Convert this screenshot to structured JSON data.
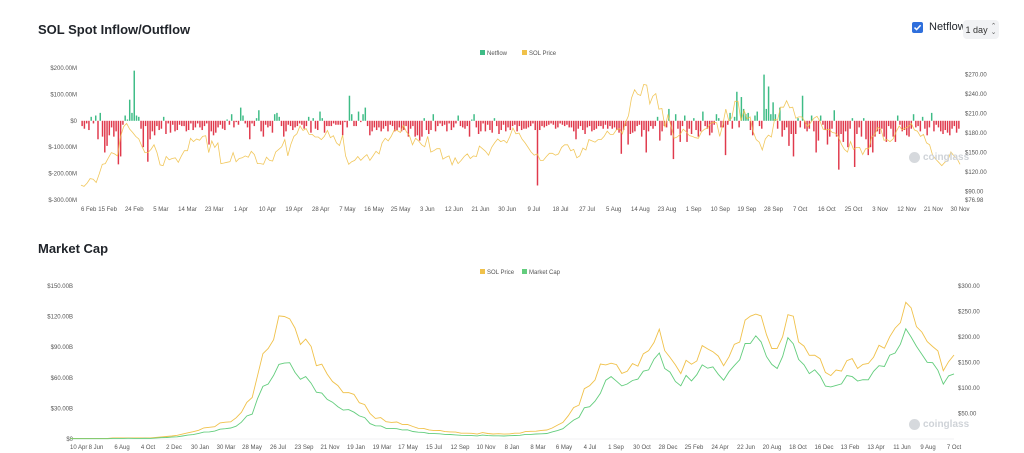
{
  "header": {
    "title": "SOL Spot Inflow/Outflow",
    "netflow_toggle_label": "Netflow",
    "interval_value": "1 day"
  },
  "colors": {
    "inflow": "#3ebc86",
    "outflow": "#e0394c",
    "price": "#f0c14a",
    "marketcap": "#63cd7d",
    "accent": "#2f6fdc"
  },
  "watermark": "coinglass",
  "chart_data": [
    {
      "type": "bar",
      "title": "SOL Spot Inflow/Outflow",
      "legend": [
        "Netflow",
        "SOL Price"
      ],
      "legend_position": "top-center",
      "y_left_ticks": [
        "$200.00M",
        "$100.00M",
        "$0",
        "$-100.00M",
        "$-200.00M",
        "$-300.00M"
      ],
      "y_left_range_millions": [
        -300,
        200
      ],
      "y_right_ticks": [
        "$270.00",
        "$240.00",
        "$210.00",
        "$180.00",
        "$150.00",
        "$120.00",
        "$90.00",
        "$76.98"
      ],
      "y_right_range_usd": [
        76.98,
        285
      ],
      "x_ticks": [
        "6 Feb",
        "15 Feb",
        "24 Feb",
        "5 Mar",
        "14 Mar",
        "23 Mar",
        "1 Apr",
        "10 Apr",
        "19 Apr",
        "28 Apr",
        "7 May",
        "16 May",
        "25 May",
        "3 Jun",
        "12 Jun",
        "21 Jun",
        "30 Jun",
        "9 Jul",
        "18 Jul",
        "27 Jul",
        "5 Aug",
        "14 Aug",
        "23 Aug",
        "1 Sep",
        "10 Sep",
        "19 Sep",
        "28 Sep",
        "7 Oct",
        "16 Oct",
        "25 Oct",
        "3 Nov",
        "12 Nov",
        "21 Nov",
        "30 Nov"
      ],
      "netflow_millions": [
        -20,
        -30,
        -10,
        -35,
        15,
        -10,
        20,
        -70,
        30,
        -60,
        -120,
        -95,
        -55,
        -25,
        -60,
        -40,
        -165,
        -135,
        -15,
        20,
        5,
        80,
        30,
        190,
        20,
        15,
        -30,
        -100,
        -20,
        -155,
        -70,
        -40,
        -55,
        -20,
        -35,
        -30,
        15,
        -50,
        -10,
        -45,
        -15,
        -40,
        -35,
        -15,
        -20,
        -20,
        -40,
        -35,
        -10,
        -35,
        -25,
        -10,
        -25,
        -35,
        -20,
        -10,
        -90,
        -40,
        -55,
        -45,
        -25,
        -15,
        -30,
        -35,
        5,
        -15,
        25,
        -25,
        -5,
        -15,
        50,
        20,
        -10,
        -25,
        -70,
        -10,
        -20,
        10,
        40,
        -40,
        -60,
        -15,
        -25,
        -20,
        -45,
        25,
        30,
        15,
        -20,
        -60,
        -40,
        -15,
        -20,
        -35,
        -25,
        -20,
        -10,
        -15,
        -30,
        -20,
        15,
        -45,
        10,
        -30,
        -35,
        35,
        10,
        -45,
        -20,
        -20,
        -20,
        -10,
        -15,
        -15,
        -15,
        -55,
        -5,
        -25,
        95,
        25,
        -20,
        -20,
        35,
        -5,
        25,
        50,
        -20,
        -55,
        -40,
        -25,
        -35,
        -25,
        -40,
        -30,
        -20,
        -40,
        -15,
        -20,
        -40,
        -35,
        -25,
        -40,
        -35,
        -20,
        -60,
        -30,
        -20,
        -60,
        -55,
        -75,
        -60,
        10,
        -35,
        -50,
        -35,
        25,
        -40,
        -20,
        -10,
        -20,
        -15,
        -40,
        -10,
        -35,
        -25,
        -10,
        20,
        -20,
        -25,
        -30,
        -20,
        -60,
        5,
        25,
        -25,
        -50,
        -40,
        -10,
        -40,
        -15,
        -35,
        -45,
        10,
        -20,
        -50,
        -35,
        -15,
        -40,
        -25,
        -35,
        -20,
        -15,
        -40,
        -20,
        -35,
        -30,
        -30,
        -25,
        -20,
        -10,
        -35,
        -245,
        -35,
        -20,
        -25,
        -20,
        -15,
        -10,
        -15,
        -30,
        -25,
        -10,
        -15,
        -20,
        -15,
        -25,
        -25,
        -40,
        -70,
        -30,
        -20,
        -35,
        -50,
        -25,
        -20,
        -40,
        -35,
        -30,
        -20,
        -20,
        -30,
        -15,
        -30,
        -20,
        -30,
        -25,
        -35,
        -45,
        -125,
        -35,
        -20,
        -90,
        -50,
        -45,
        -40,
        -20,
        -15,
        -60,
        -35,
        -120,
        -40,
        -20,
        -30,
        -20,
        15,
        -75,
        -40,
        -20,
        -25,
        45,
        -55,
        -145,
        25,
        -30,
        -80,
        -20,
        20,
        -80,
        -30,
        -50,
        10,
        -35,
        -60,
        -40,
        35,
        -20,
        -30,
        -55,
        -45,
        -15,
        25,
        10,
        -25,
        -25,
        -130,
        -15,
        30,
        -30,
        15,
        110,
        -25,
        90,
        45,
        25,
        30,
        -35,
        -55,
        20,
        35,
        -20,
        -30,
        175,
        45,
        130,
        25,
        70,
        25,
        -30,
        50,
        -60,
        -35,
        -25,
        -95,
        -50,
        -135,
        -50,
        10,
        -25,
        95,
        -30,
        -40,
        -30,
        20,
        -40,
        -120,
        -75,
        20,
        -15,
        -35,
        -90,
        -60,
        -30,
        40,
        -60,
        -185,
        -50,
        -80,
        -40,
        -100,
        -30,
        10,
        -175,
        -50,
        -25,
        -60,
        10,
        -70,
        -130,
        -100,
        -120,
        -60,
        -40,
        -50,
        -30,
        -60,
        -80,
        -20,
        -30,
        -60,
        -80,
        20,
        -15,
        -40,
        -35,
        -55,
        -60,
        -30,
        25,
        -25,
        -20,
        -40,
        15,
        -30,
        -55,
        -25,
        30,
        -40,
        -15,
        -25,
        -40,
        -50,
        -35,
        -45,
        -55,
        -30,
        -20,
        -45,
        -30
      ],
      "sol_price_usd": [
        100,
        98,
        103,
        110,
        109,
        104,
        117,
        132,
        133,
        142,
        150,
        148,
        145,
        174,
        190,
        195,
        186,
        181,
        175,
        171,
        160,
        150,
        150,
        155,
        162,
        150,
        131,
        130,
        144,
        139,
        141,
        142,
        135,
        145,
        153,
        153,
        172,
        167,
        171,
        169,
        175,
        176,
        150,
        168,
        158,
        165,
        133,
        134,
        135,
        136,
        150,
        136,
        141,
        142,
        145,
        143,
        152,
        147,
        133,
        133,
        132,
        143,
        138,
        137,
        151,
        155,
        159,
        170,
        145,
        163,
        175,
        179,
        191,
        184,
        187,
        178,
        178,
        174,
        174,
        170,
        175,
        184,
        173,
        176,
        165,
        161,
        177,
        145,
        132,
        136,
        138,
        144,
        138,
        143,
        147,
        138,
        145,
        152,
        148,
        165,
        172,
        168,
        175,
        185,
        184,
        181,
        192,
        182,
        176,
        162,
        172,
        168,
        162,
        159,
        175,
        151,
        153,
        156,
        156,
        140,
        143,
        145,
        131,
        142,
        133,
        138,
        144,
        148,
        141,
        145,
        144,
        160,
        156,
        152,
        146,
        158,
        165,
        171,
        167,
        169,
        165,
        175,
        188,
        179,
        180,
        171,
        165,
        158,
        151,
        146,
        148,
        138,
        138,
        144,
        149,
        149,
        146,
        148,
        158,
        162,
        162,
        153,
        155,
        142,
        145,
        157,
        154,
        170,
        168,
        166,
        170,
        170,
        175,
        183,
        178,
        178,
        185,
        187,
        179,
        196,
        207,
        234,
        247,
        240,
        238,
        255,
        254,
        225,
        237,
        241,
        217,
        218,
        189,
        209,
        190,
        172,
        174,
        178,
        186,
        182,
        176,
        175,
        173,
        172,
        182,
        186,
        188,
        195,
        197,
        196,
        175,
        193,
        217,
        199,
        204,
        229,
        229,
        199,
        215,
        202,
        205,
        182,
        170,
        166,
        154,
        171,
        177,
        174,
        201,
        200,
        220,
        220,
        230,
        219,
        220,
        203,
        205,
        205,
        198,
        190,
        197,
        203,
        206,
        198,
        186,
        185,
        186,
        181,
        180,
        175,
        163,
        155,
        151,
        167,
        155,
        158,
        158,
        147,
        156,
        156,
        174,
        178,
        189,
        186,
        169,
        170,
        167,
        171,
        182,
        191,
        185,
        188,
        190,
        195,
        185,
        183,
        175,
        178,
        165,
        162,
        146,
        140,
        135,
        130,
        135,
        138,
        151,
        145,
        141,
        132
      ]
    },
    {
      "type": "line",
      "title": "Market Cap",
      "legend": [
        "SOL Price",
        "Market Cap"
      ],
      "legend_position": "top-center",
      "y_left_ticks": [
        "$150.00B",
        "$120.00B",
        "$90.00B",
        "$60.00B",
        "$30.00B",
        "$0"
      ],
      "y_left_range_billions": [
        0,
        150
      ],
      "y_right_ticks": [
        "$300.00",
        "$250.00",
        "$200.00",
        "$150.00",
        "$100.00",
        "$50.00"
      ],
      "y_right_range_usd": [
        0,
        300
      ],
      "x_ticks": [
        "10 Apr",
        "8 Jun",
        "6 Aug",
        "4 Oct",
        "2 Dec",
        "30 Jan",
        "30 Mar",
        "28 May",
        "26 Jul",
        "23 Sep",
        "21 Nov",
        "19 Jan",
        "19 Mar",
        "17 May",
        "15 Jul",
        "12 Sep",
        "10 Nov",
        "8 Jan",
        "8 Mar",
        "6 May",
        "4 Jul",
        "1 Sep",
        "30 Oct",
        "28 Dec",
        "25 Feb",
        "24 Apr",
        "22 Jun",
        "20 Aug",
        "18 Oct",
        "16 Dec",
        "13 Feb",
        "13 Apr",
        "11 Jun",
        "9 Aug",
        "7 Oct"
      ],
      "sol_price_usd": [
        1,
        1,
        1,
        1,
        1,
        1,
        1,
        1,
        2,
        2,
        2,
        2,
        2,
        2,
        2,
        2,
        3,
        4,
        5,
        6,
        7,
        10,
        12,
        14,
        18,
        21,
        23,
        25,
        30,
        34,
        34,
        40,
        55,
        70,
        80,
        130,
        160,
        180,
        200,
        230,
        250,
        235,
        210,
        195,
        190,
        180,
        150,
        140,
        130,
        115,
        100,
        95,
        90,
        85,
        75,
        65,
        50,
        42,
        40,
        35,
        33,
        32,
        30,
        28,
        24,
        22,
        20,
        18,
        17,
        16,
        15,
        14,
        13,
        12,
        11,
        11,
        10,
        12,
        11,
        10,
        10,
        10,
        10,
        11,
        12,
        14,
        15,
        16,
        16,
        18,
        22,
        26,
        34,
        45,
        60,
        70,
        95,
        105,
        120,
        140,
        150,
        150,
        140,
        135,
        130,
        145,
        150,
        160,
        175,
        195,
        205,
        180,
        160,
        140,
        135,
        150,
        145,
        160,
        175,
        180,
        175,
        155,
        150,
        160,
        180,
        200,
        225,
        240,
        255,
        230,
        210,
        180,
        170,
        210,
        240,
        235,
        200,
        175,
        165,
        170,
        150,
        135,
        125,
        130,
        140,
        150,
        155,
        145,
        140,
        150,
        165,
        175,
        185,
        200,
        210,
        240,
        260,
        255,
        230,
        200,
        195,
        185,
        165,
        140,
        150,
        160
      ]
    }
  ]
}
